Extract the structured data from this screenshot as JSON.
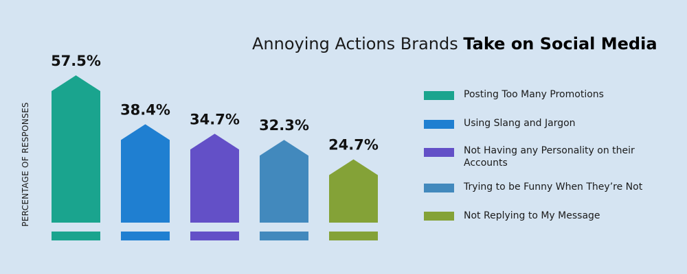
{
  "title": {
    "regular": "Annoying Actions Brands ",
    "bold": "Take on Social Media"
  },
  "chart_data": {
    "type": "bar",
    "title": "Annoying Actions Brands Take on Social Media",
    "ylabel": "PERCENTAGE OF RESPONSES",
    "xlabel": "",
    "categories": [
      "Posting Too Many Promotions",
      "Using Slang and Jargon",
      "Not Having any Personality on their Accounts",
      "Trying to be Funny When They’re Not",
      "Not Replying to My Message"
    ],
    "values": [
      57.5,
      38.4,
      34.7,
      32.3,
      24.7
    ],
    "value_labels": [
      "57.5%",
      "38.4%",
      "34.7%",
      "32.3%",
      "24.7%"
    ],
    "colors": [
      "#1aa48e",
      "#1f7fd1",
      "#6350c7",
      "#4289bd",
      "#84a237"
    ],
    "ylim": [
      0,
      60
    ],
    "grid": false,
    "legend_position": "right"
  }
}
